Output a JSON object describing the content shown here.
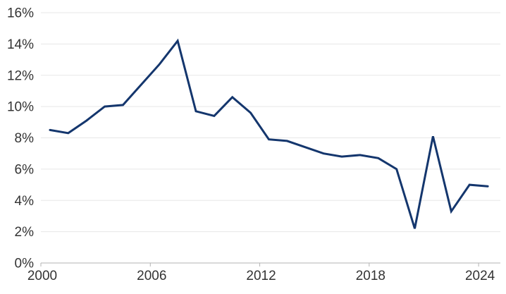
{
  "chart_data": {
    "type": "line",
    "title": "",
    "xlabel": "",
    "ylabel": "",
    "categories": [
      2000,
      2001,
      2002,
      2003,
      2004,
      2005,
      2006,
      2007,
      2008,
      2009,
      2010,
      2011,
      2012,
      2013,
      2014,
      2015,
      2016,
      2017,
      2018,
      2019,
      2020,
      2021,
      2022,
      2023,
      2024
    ],
    "values": [
      8.5,
      8.3,
      9.1,
      10.0,
      10.1,
      11.4,
      12.7,
      14.2,
      9.7,
      9.4,
      10.6,
      9.6,
      7.9,
      7.8,
      7.4,
      7.0,
      6.8,
      6.9,
      6.7,
      6.0,
      2.2,
      8.1,
      3.3,
      5.0,
      4.9
    ],
    "ylim": [
      0,
      16
    ],
    "y_tick_step": 2,
    "y_tick_labels": [
      "0%",
      "2%",
      "4%",
      "6%",
      "8%",
      "10%",
      "12%",
      "14%",
      "16%"
    ],
    "x_tick_years": [
      2000,
      2006,
      2012,
      2018,
      2024
    ],
    "x_tick_labels": [
      "2000",
      "2006",
      "2012",
      "2018",
      "2024"
    ],
    "grid": "horizontal",
    "legend": "none",
    "colors": {
      "line": "#14366D",
      "gridline": "#e7e7e7",
      "axis_line": "#b3b3b3",
      "tick_mark": "#b3b3b3",
      "tick_text": "#333333",
      "background": "#ffffff"
    }
  }
}
